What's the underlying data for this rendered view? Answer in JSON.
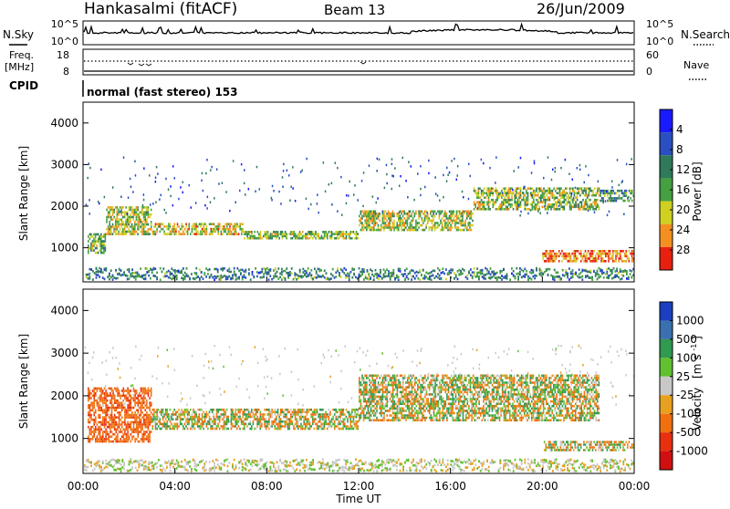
{
  "header": {
    "station": "Hankasalmi (fitACF)",
    "beam": "Beam 13",
    "date": "26/Jun/2009"
  },
  "noise_panel": {
    "left_label": "N.Sky",
    "right_label": "N.Search",
    "ticks_left": [
      "10^5",
      "10^0"
    ],
    "ticks_right": [
      "10^5",
      "10^0"
    ]
  },
  "freq_panel": {
    "left_label": "Freq.",
    "left_unit": "[MHz]",
    "right_label": "Nave",
    "ticks_left": [
      "18",
      "8"
    ],
    "ticks_right": [
      "60",
      "0"
    ]
  },
  "cpid": {
    "label": "CPID",
    "value": "normal (fast stereo) 153"
  },
  "chart_data": [
    {
      "type": "heatmap",
      "panel": "power",
      "ylabel": "Slant Range [km]",
      "xlabel": "",
      "xlim": [
        "00:00",
        "24:00"
      ],
      "ylim": [
        180,
        4500
      ],
      "yticks": [
        "1000",
        "2000",
        "3000",
        "4000"
      ],
      "colorbar": {
        "label": "Power [dB]",
        "ticks": [
          "4",
          "8",
          "12",
          "16",
          "20",
          "24",
          "28"
        ],
        "colors": [
          "#1a1aff",
          "#2a4fc0",
          "#2f7a5a",
          "#44a040",
          "#cfd020",
          "#f39020",
          "#e82010"
        ]
      },
      "echo_bands": [
        {
          "from_hour": 0.2,
          "to_hour": 1.0,
          "range_km": [
            850,
            1350
          ],
          "power_db": 15
        },
        {
          "from_hour": 1.0,
          "to_hour": 3.0,
          "range_km": [
            1300,
            2000
          ],
          "power_db": 18
        },
        {
          "from_hour": 3.0,
          "to_hour": 7.0,
          "range_km": [
            1300,
            1600
          ],
          "power_db": 20
        },
        {
          "from_hour": 7.0,
          "to_hour": 12.0,
          "range_km": [
            1200,
            1400
          ],
          "power_db": 16
        },
        {
          "from_hour": 12.0,
          "to_hour": 17.0,
          "range_km": [
            1400,
            1900
          ],
          "power_db": 18
        },
        {
          "from_hour": 17.0,
          "to_hour": 22.5,
          "range_km": [
            1900,
            2450
          ],
          "power_db": 17
        },
        {
          "from_hour": 22.5,
          "to_hour": 24.0,
          "range_km": [
            2100,
            2400
          ],
          "power_db": 12
        },
        {
          "from_hour": 20.0,
          "to_hour": 24.0,
          "range_km": [
            650,
            950
          ],
          "power_db": 25
        }
      ]
    },
    {
      "type": "heatmap",
      "panel": "velocity",
      "ylabel": "Slant Range [km]",
      "xlabel": "Time UT",
      "xlim": [
        "00:00",
        "24:00"
      ],
      "ylim": [
        180,
        4500
      ],
      "yticks": [
        "1000",
        "2000",
        "3000",
        "4000"
      ],
      "xticks": [
        "00:00",
        "04:00",
        "08:00",
        "12:00",
        "16:00",
        "20:00",
        "00:00"
      ],
      "colorbar": {
        "label": "Velocity",
        "unit": "[m s",
        "unit_exp": "-1",
        "unit_close": "]",
        "ticks": [
          "1000",
          "500",
          "100",
          "25",
          "-25",
          "-100",
          "-500",
          "-1000"
        ],
        "colors": [
          "#1a3fc0",
          "#3a70b0",
          "#2f9a50",
          "#60c030",
          "#c8c8c8",
          "#e8a020",
          "#f07010",
          "#e83010",
          "#d01010"
        ]
      },
      "echo_bands": [
        {
          "from_hour": 0.2,
          "to_hour": 3.0,
          "range_km": [
            900,
            2200
          ],
          "velocity": -400
        },
        {
          "from_hour": 3.0,
          "to_hour": 12.0,
          "range_km": [
            1200,
            1700
          ],
          "velocity": 0
        },
        {
          "from_hour": 12.0,
          "to_hour": 22.5,
          "range_km": [
            1400,
            2500
          ],
          "velocity": 0
        },
        {
          "from_hour": 20.0,
          "to_hour": 24.0,
          "range_km": [
            700,
            950
          ],
          "velocity": 0
        }
      ]
    }
  ]
}
